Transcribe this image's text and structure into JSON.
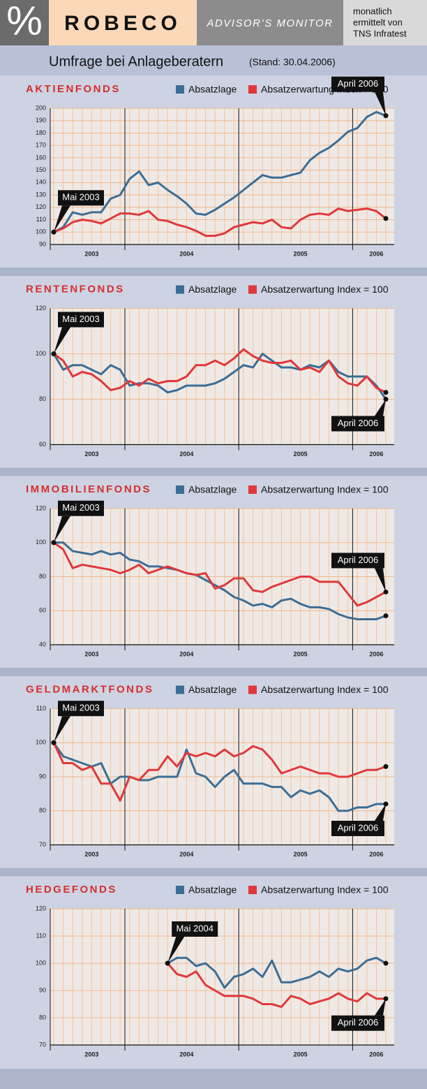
{
  "header": {
    "logo": "%",
    "brand": "ROBECO",
    "product": "ADVISOR’S MONITOR",
    "note": [
      "monatlich",
      "ermittelt von",
      "TNS Infratest"
    ]
  },
  "subtitle": {
    "title": "Umfrage bei Anlageberatern",
    "date": "(Stand: 30.04.2006)"
  },
  "chart_data": [
    {
      "type": "line",
      "title": "AKTIENFONDS",
      "categories": [
        null,
        null,
        null,
        null,
        "2003",
        null,
        null,
        null,
        null,
        null,
        null,
        null,
        null,
        null,
        "2004",
        null,
        null,
        null,
        null,
        null,
        null,
        null,
        null,
        null,
        null,
        null,
        "2005",
        null,
        null,
        null,
        null,
        null,
        null,
        null,
        "2006",
        null
      ],
      "series": [
        {
          "name": "Absatzlage",
          "color": "#3b6e96",
          "values": [
            100,
            104,
            116,
            114,
            116,
            116,
            127,
            130,
            143,
            149,
            138,
            140,
            134,
            129,
            123,
            115,
            114,
            118,
            123,
            128,
            134,
            140,
            146,
            144,
            144,
            146,
            148,
            158,
            164,
            168,
            174,
            181,
            184,
            193,
            197,
            194
          ]
        },
        {
          "name": "Absatzerwartung Index = 100",
          "color": "#e0383a",
          "values": [
            100,
            103,
            108,
            110,
            109,
            107,
            111,
            115,
            115,
            114,
            117,
            110,
            109,
            106,
            104,
            101,
            97,
            97,
            99,
            104,
            106,
            108,
            107,
            110,
            104,
            103,
            110,
            114,
            115,
            114,
            119,
            117,
            118,
            119,
            117,
            111
          ]
        }
      ],
      "ylim": [
        90,
        200
      ],
      "yticks": [
        90,
        100,
        110,
        120,
        130,
        140,
        150,
        160,
        170,
        180,
        190,
        200
      ],
      "grid": true,
      "annotations": [
        "Mai 2003",
        "April 2006"
      ]
    },
    {
      "type": "line",
      "title": "RENTENFONDS",
      "categories": [
        null,
        null,
        null,
        null,
        "2003",
        null,
        null,
        null,
        null,
        null,
        null,
        null,
        null,
        null,
        "2004",
        null,
        null,
        null,
        null,
        null,
        null,
        null,
        null,
        null,
        null,
        null,
        "2005",
        null,
        null,
        null,
        null,
        null,
        null,
        null,
        "2006",
        null
      ],
      "series": [
        {
          "name": "Absatzlage",
          "color": "#3b6e96",
          "values": [
            100,
            93,
            95,
            95,
            93,
            91,
            95,
            93,
            86,
            87,
            87,
            86,
            83,
            84,
            86,
            86,
            86,
            87,
            89,
            92,
            95,
            94,
            100,
            97,
            94,
            94,
            93,
            95,
            94,
            97,
            92,
            90,
            90,
            90,
            86,
            80
          ]
        },
        {
          "name": "Absatzerwartung Index = 100",
          "color": "#e0383a",
          "values": [
            100,
            97,
            90,
            92,
            91,
            88,
            84,
            85,
            88,
            86,
            89,
            87,
            88,
            88,
            90,
            95,
            95,
            97,
            95,
            98,
            102,
            99,
            97,
            96,
            96,
            97,
            93,
            94,
            92,
            97,
            90,
            87,
            86,
            90,
            85,
            83
          ]
        }
      ],
      "ylim": [
        60,
        120
      ],
      "yticks": [
        60,
        80,
        100,
        120
      ],
      "grid": true,
      "annotations": [
        "Mai 2003",
        "April 2006"
      ]
    },
    {
      "type": "line",
      "title": "IMMOBILIENFONDS",
      "categories": [
        null,
        null,
        null,
        null,
        "2003",
        null,
        null,
        null,
        null,
        null,
        null,
        null,
        null,
        null,
        "2004",
        null,
        null,
        null,
        null,
        null,
        null,
        null,
        null,
        null,
        null,
        null,
        "2005",
        null,
        null,
        null,
        null,
        null,
        null,
        null,
        "2006",
        null
      ],
      "series": [
        {
          "name": "Absatzlage",
          "color": "#3b6e96",
          "values": [
            100,
            100,
            95,
            94,
            93,
            95,
            93,
            94,
            90,
            89,
            86,
            86,
            85,
            84,
            82,
            81,
            78,
            75,
            72,
            68,
            66,
            63,
            64,
            62,
            66,
            67,
            64,
            62,
            62,
            61,
            58,
            56,
            55,
            55,
            55,
            57
          ]
        },
        {
          "name": "Absatzerwartung Index = 100",
          "color": "#e0383a",
          "values": [
            100,
            96,
            85,
            87,
            86,
            85,
            84,
            82,
            84,
            87,
            82,
            84,
            86,
            84,
            82,
            81,
            82,
            73,
            75,
            79,
            79,
            72,
            71,
            74,
            76,
            78,
            80,
            80,
            77,
            77,
            77,
            70,
            63,
            65,
            68,
            71
          ]
        }
      ],
      "ylim": [
        40,
        120
      ],
      "yticks": [
        40,
        60,
        80,
        100,
        120
      ],
      "grid": true,
      "annotations": [
        "Mai 2003",
        "April 2006"
      ]
    },
    {
      "type": "line",
      "title": "GELDMARKTFONDS",
      "categories": [
        null,
        null,
        null,
        null,
        "2003",
        null,
        null,
        null,
        null,
        null,
        null,
        null,
        null,
        null,
        "2004",
        null,
        null,
        null,
        null,
        null,
        null,
        null,
        null,
        null,
        null,
        null,
        "2005",
        null,
        null,
        null,
        null,
        null,
        null,
        null,
        "2006",
        null
      ],
      "series": [
        {
          "name": "Absatzlage",
          "color": "#3b6e96",
          "values": [
            100,
            96,
            95,
            94,
            93,
            94,
            88,
            90,
            90,
            89,
            89,
            90,
            90,
            90,
            98,
            91,
            90,
            87,
            90,
            92,
            88,
            88,
            88,
            87,
            87,
            84,
            86,
            85,
            86,
            84,
            80,
            80,
            81,
            81,
            82,
            82
          ]
        },
        {
          "name": "Absatzerwartung Index = 100",
          "color": "#e0383a",
          "values": [
            100,
            94,
            94,
            92,
            93,
            88,
            88,
            83,
            90,
            89,
            92,
            92,
            96,
            93,
            97,
            96,
            97,
            96,
            98,
            96,
            97,
            99,
            98,
            95,
            91,
            92,
            93,
            92,
            91,
            91,
            90,
            90,
            91,
            92,
            92,
            93
          ]
        }
      ],
      "ylim": [
        70,
        110
      ],
      "yticks": [
        70,
        80,
        90,
        100,
        110
      ],
      "grid": true,
      "annotations": [
        "Mai 2003",
        "April 2006"
      ]
    },
    {
      "type": "line",
      "title": "HEDGEFONDS",
      "categories": [
        null,
        null,
        null,
        null,
        "2003",
        null,
        null,
        null,
        null,
        null,
        null,
        null,
        null,
        null,
        "2004",
        null,
        null,
        null,
        null,
        null,
        null,
        null,
        null,
        null,
        null,
        null,
        "2005",
        null,
        null,
        null,
        null,
        null,
        null,
        null,
        "2006",
        null
      ],
      "series": [
        {
          "name": "Absatzlage",
          "color": "#3b6e96",
          "values": [
            null,
            null,
            null,
            null,
            null,
            null,
            null,
            null,
            null,
            null,
            null,
            null,
            100,
            102,
            102,
            99,
            100,
            97,
            91,
            95,
            96,
            98,
            95,
            101,
            93,
            93,
            94,
            95,
            97,
            95,
            98,
            97,
            98,
            101,
            102,
            100
          ]
        },
        {
          "name": "Absatzerwartung Index = 100",
          "color": "#e0383a",
          "values": [
            null,
            null,
            null,
            null,
            null,
            null,
            null,
            null,
            null,
            null,
            null,
            null,
            100,
            96,
            95,
            97,
            92,
            90,
            88,
            88,
            88,
            87,
            85,
            85,
            84,
            88,
            87,
            85,
            86,
            87,
            89,
            87,
            86,
            89,
            87,
            87
          ]
        }
      ],
      "ylim": [
        70,
        120
      ],
      "yticks": [
        70,
        80,
        90,
        100,
        110,
        120
      ],
      "grid": true,
      "annotations": [
        "Mai 2004",
        "April 2006"
      ]
    }
  ]
}
